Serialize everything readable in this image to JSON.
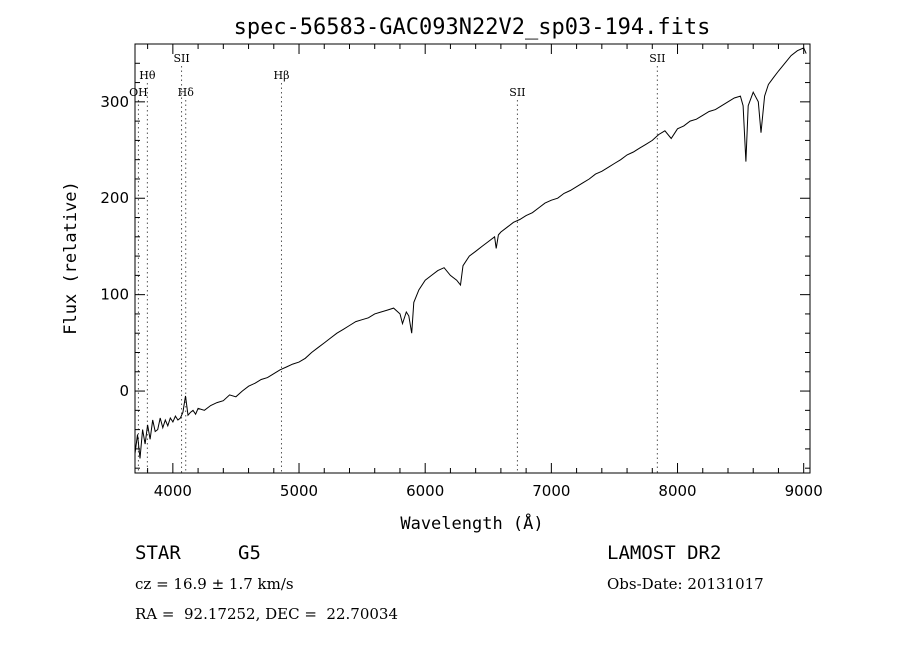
{
  "chart_data": {
    "type": "line",
    "title": "spec-56583-GAC093N22V2_sp03-194.fits",
    "xlabel": "Wavelength (Å)",
    "ylabel": "Flux (relative)",
    "xlim": [
      3700,
      9050
    ],
    "ylim": [
      -85,
      360
    ],
    "x_ticks": [
      4000,
      5000,
      6000,
      7000,
      8000,
      9000
    ],
    "y_ticks": [
      0,
      100,
      200,
      300
    ],
    "x_tick_labels": [
      "4000",
      "5000",
      "6000",
      "7000",
      "8000",
      "9000"
    ],
    "y_tick_labels": [
      "0",
      "100",
      "200",
      "300"
    ],
    "grid": false,
    "series": [
      {
        "x": [
          3700,
          3720,
          3740,
          3760,
          3780,
          3800,
          3820,
          3840,
          3860,
          3880,
          3900,
          3920,
          3940,
          3960,
          3980,
          4000,
          4020,
          4040,
          4060,
          4080,
          4100,
          4120,
          4140,
          4160,
          4180,
          4200,
          4250,
          4300,
          4350,
          4400,
          4450,
          4500,
          4550,
          4600,
          4650,
          4700,
          4750,
          4800,
          4850,
          4900,
          4950,
          5000,
          5050,
          5100,
          5150,
          5200,
          5250,
          5300,
          5350,
          5400,
          5450,
          5500,
          5550,
          5600,
          5650,
          5700,
          5750,
          5800,
          5820,
          5850,
          5870,
          5893,
          5910,
          5950,
          6000,
          6050,
          6100,
          6150,
          6200,
          6250,
          6280,
          6300,
          6350,
          6400,
          6450,
          6500,
          6550,
          6563,
          6580,
          6600,
          6650,
          6700,
          6750,
          6800,
          6850,
          6900,
          6950,
          7000,
          7050,
          7100,
          7150,
          7200,
          7250,
          7300,
          7350,
          7400,
          7450,
          7500,
          7550,
          7600,
          7650,
          7700,
          7750,
          7800,
          7850,
          7900,
          7950,
          8000,
          8050,
          8100,
          8150,
          8200,
          8250,
          8300,
          8350,
          8400,
          8450,
          8498,
          8520,
          8542,
          8560,
          8600,
          8640,
          8662,
          8690,
          8720,
          8760,
          8800,
          8850,
          8900,
          8950,
          9000,
          9020
        ],
        "y": [
          -65,
          -45,
          -70,
          -40,
          -55,
          -35,
          -50,
          -30,
          -42,
          -40,
          -28,
          -38,
          -30,
          -36,
          -28,
          -32,
          -26,
          -30,
          -28,
          -22,
          -5,
          -25,
          -22,
          -20,
          -24,
          -18,
          -20,
          -15,
          -12,
          -10,
          -4,
          -6,
          0,
          5,
          8,
          12,
          14,
          18,
          22,
          25,
          28,
          30,
          34,
          40,
          45,
          50,
          55,
          60,
          64,
          68,
          72,
          74,
          76,
          80,
          82,
          84,
          86,
          80,
          70,
          82,
          78,
          60,
          92,
          105,
          115,
          120,
          125,
          128,
          120,
          115,
          110,
          130,
          140,
          145,
          150,
          155,
          160,
          148,
          162,
          165,
          170,
          175,
          178,
          182,
          185,
          190,
          195,
          198,
          200,
          205,
          208,
          212,
          216,
          220,
          225,
          228,
          232,
          236,
          240,
          245,
          248,
          252,
          256,
          260,
          266,
          270,
          262,
          272,
          275,
          280,
          282,
          286,
          290,
          292,
          296,
          300,
          304,
          306,
          296,
          238,
          296,
          310,
          300,
          268,
          306,
          318,
          325,
          332,
          340,
          348,
          353,
          356,
          350
        ]
      }
    ],
    "line_markers": [
      {
        "label": "OH",
        "wavelength": 3727,
        "row": 3
      },
      {
        "label": "Hθ",
        "wavelength": 3798,
        "row": 2
      },
      {
        "label": "SII",
        "wavelength": 4069,
        "row": 1
      },
      {
        "label": "Hδ",
        "wavelength": 4102,
        "row": 3
      },
      {
        "label": "Hβ",
        "wavelength": 4861,
        "row": 2
      },
      {
        "label": "SII",
        "wavelength": 6731,
        "row": 3
      },
      {
        "label": "SII",
        "wavelength": 7840,
        "row": 1
      }
    ]
  },
  "footer": {
    "object_class": "STAR",
    "subclass": "G5",
    "survey": "LAMOST DR2",
    "redshift": "cz = 16.9 ± 1.7 km/s",
    "obs_date": "Obs-Date: 20131017",
    "coords": "RA =  92.17252, DEC =  22.70034"
  }
}
